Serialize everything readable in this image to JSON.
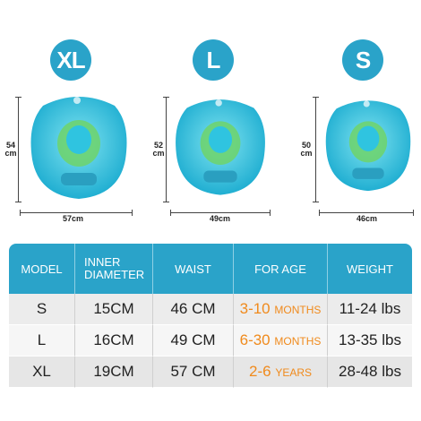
{
  "sizes": [
    {
      "badge": "XL",
      "height": "54",
      "height_unit": "cm",
      "width": "57cm"
    },
    {
      "badge": "L",
      "height": "52",
      "height_unit": "cm",
      "width": "49cm"
    },
    {
      "badge": "S",
      "height": "50",
      "height_unit": "cm",
      "width": "46cm"
    }
  ],
  "table": {
    "headers": [
      "MODEL",
      "INNER DIAMETER",
      "WAIST",
      "FOR AGE",
      "WEIGHT"
    ],
    "rows": [
      {
        "model": "S",
        "inner": "15CM",
        "waist": "46 CM",
        "age_num": "3-10",
        "age_unit": "MONTHS",
        "weight": "11-24 lbs"
      },
      {
        "model": "L",
        "inner": "16CM",
        "waist": "49 CM",
        "age_num": "6-30",
        "age_unit": "MONTHS",
        "weight": "13-35 lbs"
      },
      {
        "model": "XL",
        "inner": "19CM",
        "waist": "57 CM",
        "age_num": "2-6",
        "age_unit": "YEARS",
        "weight": "28-48 lbs"
      }
    ]
  },
  "colors": {
    "accent": "#2aa3c9",
    "age": "#f08a1c",
    "float_body": "#2fc4e0",
    "float_seat": "#6fd36a"
  }
}
